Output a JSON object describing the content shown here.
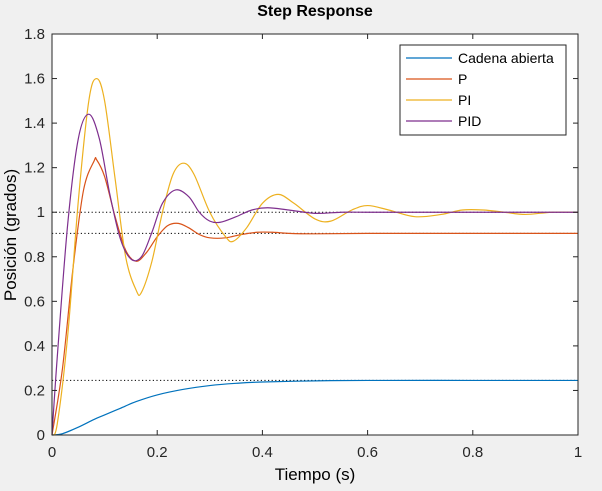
{
  "chart_data": {
    "type": "line",
    "title": "Step Response",
    "xlabel": "Tiempo (s)",
    "ylabel": "Posición (grados)",
    "xlim": [
      0,
      1
    ],
    "ylim": [
      0,
      1.8
    ],
    "xticks": [
      0,
      0.2,
      0.4,
      0.6,
      0.8,
      1
    ],
    "xtick_labels": [
      "0",
      "0.2",
      "0.4",
      "0.6",
      "0.8",
      "1"
    ],
    "yticks": [
      0,
      0.2,
      0.4,
      0.6,
      0.8,
      1,
      1.2,
      1.4,
      1.6,
      1.8
    ],
    "ytick_labels": [
      "0",
      "0.2",
      "0.4",
      "0.6",
      "0.8",
      "1",
      "1.2",
      "1.4",
      "1.6",
      "1.8"
    ],
    "grid": false,
    "legend_position": "top-right",
    "reference_lines": [
      {
        "y": 1.0,
        "x_start": 0,
        "style": "dotted"
      },
      {
        "y": 0.905,
        "x_start": 0,
        "style": "dotted"
      },
      {
        "y": 0.245,
        "x_start": 0,
        "style": "dotted"
      }
    ],
    "series": [
      {
        "name": "Cadena abierta",
        "color": "#0072bd",
        "x": [
          0,
          0.02,
          0.05,
          0.08,
          0.1,
          0.13,
          0.16,
          0.2,
          0.25,
          0.3,
          0.35,
          0.4,
          0.5,
          0.6,
          0.8,
          1.0
        ],
        "y": [
          0,
          0.006,
          0.035,
          0.07,
          0.09,
          0.12,
          0.15,
          0.18,
          0.205,
          0.222,
          0.232,
          0.238,
          0.243,
          0.245,
          0.245,
          0.245
        ]
      },
      {
        "name": "P",
        "color": "#d95319",
        "x": [
          0,
          0.02,
          0.04,
          0.06,
          0.08,
          0.085,
          0.1,
          0.12,
          0.14,
          0.16,
          0.18,
          0.2,
          0.22,
          0.24,
          0.26,
          0.28,
          0.3,
          0.33,
          0.36,
          0.39,
          0.42,
          0.45,
          0.5,
          0.6,
          0.8,
          1.0
        ],
        "y": [
          0,
          0.3,
          0.75,
          1.1,
          1.23,
          1.235,
          1.16,
          0.98,
          0.83,
          0.78,
          0.82,
          0.89,
          0.94,
          0.95,
          0.93,
          0.9,
          0.885,
          0.885,
          0.9,
          0.91,
          0.91,
          0.905,
          0.903,
          0.905,
          0.905,
          0.905
        ]
      },
      {
        "name": "PI",
        "color": "#edb120",
        "x": [
          0,
          0.01,
          0.03,
          0.05,
          0.07,
          0.085,
          0.1,
          0.12,
          0.14,
          0.16,
          0.17,
          0.19,
          0.21,
          0.23,
          0.25,
          0.27,
          0.3,
          0.33,
          0.345,
          0.37,
          0.4,
          0.43,
          0.46,
          0.5,
          0.53,
          0.57,
          0.6,
          0.64,
          0.69,
          0.74,
          0.78,
          0.82,
          0.86,
          0.9,
          0.95,
          1.0
        ],
        "y": [
          0,
          0.05,
          0.45,
          1.05,
          1.5,
          1.6,
          1.5,
          1.15,
          0.8,
          0.65,
          0.64,
          0.78,
          1.0,
          1.17,
          1.22,
          1.17,
          1.0,
          0.89,
          0.87,
          0.93,
          1.04,
          1.08,
          1.04,
          0.97,
          0.96,
          1.01,
          1.03,
          1.01,
          0.98,
          0.99,
          1.01,
          1.01,
          1.0,
          0.99,
          1.0,
          1.0
        ]
      },
      {
        "name": "PID",
        "color": "#7e2f8e",
        "x": [
          0,
          0.01,
          0.03,
          0.05,
          0.07,
          0.09,
          0.11,
          0.13,
          0.15,
          0.17,
          0.19,
          0.21,
          0.235,
          0.26,
          0.28,
          0.3,
          0.32,
          0.35,
          0.38,
          0.41,
          0.45,
          0.5,
          0.55,
          0.6,
          0.7,
          0.8,
          1.0
        ],
        "y": [
          0,
          0.35,
          0.95,
          1.33,
          1.44,
          1.33,
          1.08,
          0.88,
          0.79,
          0.8,
          0.91,
          1.04,
          1.1,
          1.07,
          1.0,
          0.96,
          0.955,
          0.98,
          1.01,
          1.02,
          1.01,
          0.995,
          1.0,
          1.0,
          1.0,
          1.0,
          1.0
        ]
      }
    ]
  }
}
